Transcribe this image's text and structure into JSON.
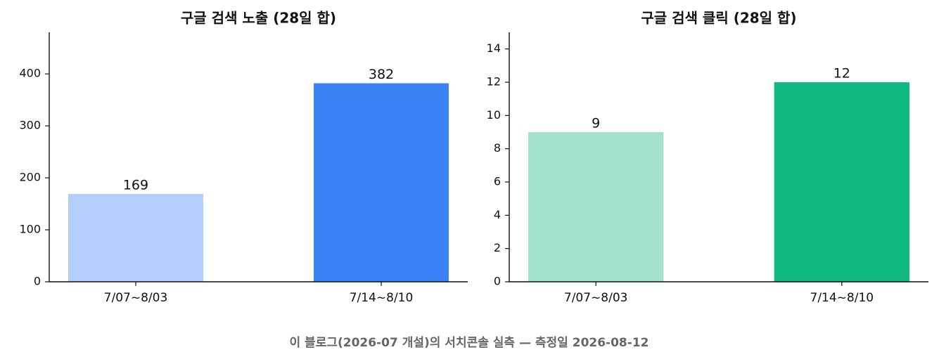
{
  "chart_data": [
    {
      "type": "bar",
      "title": "구글 검색 노출 (28일 합)",
      "categories": [
        "7/07~8/03",
        "7/14~8/10"
      ],
      "values": [
        169,
        382
      ],
      "colors": [
        "#b3cefb",
        "#3b82f6"
      ],
      "ylim": [
        0,
        480
      ],
      "yticks": [
        0,
        100,
        200,
        300,
        400
      ]
    },
    {
      "type": "bar",
      "title": "구글 검색 클릭 (28일 합)",
      "categories": [
        "7/07~8/03",
        "7/14~8/10"
      ],
      "values": [
        9,
        12
      ],
      "colors": [
        "#a3e2cb",
        "#10b981"
      ],
      "ylim": [
        0,
        15
      ],
      "yticks": [
        0,
        2,
        4,
        6,
        8,
        10,
        12,
        14
      ]
    }
  ],
  "caption": "이 블로그(2026-07 개설)의 서치콘솔 실측 — 측정일 2026-08-12"
}
